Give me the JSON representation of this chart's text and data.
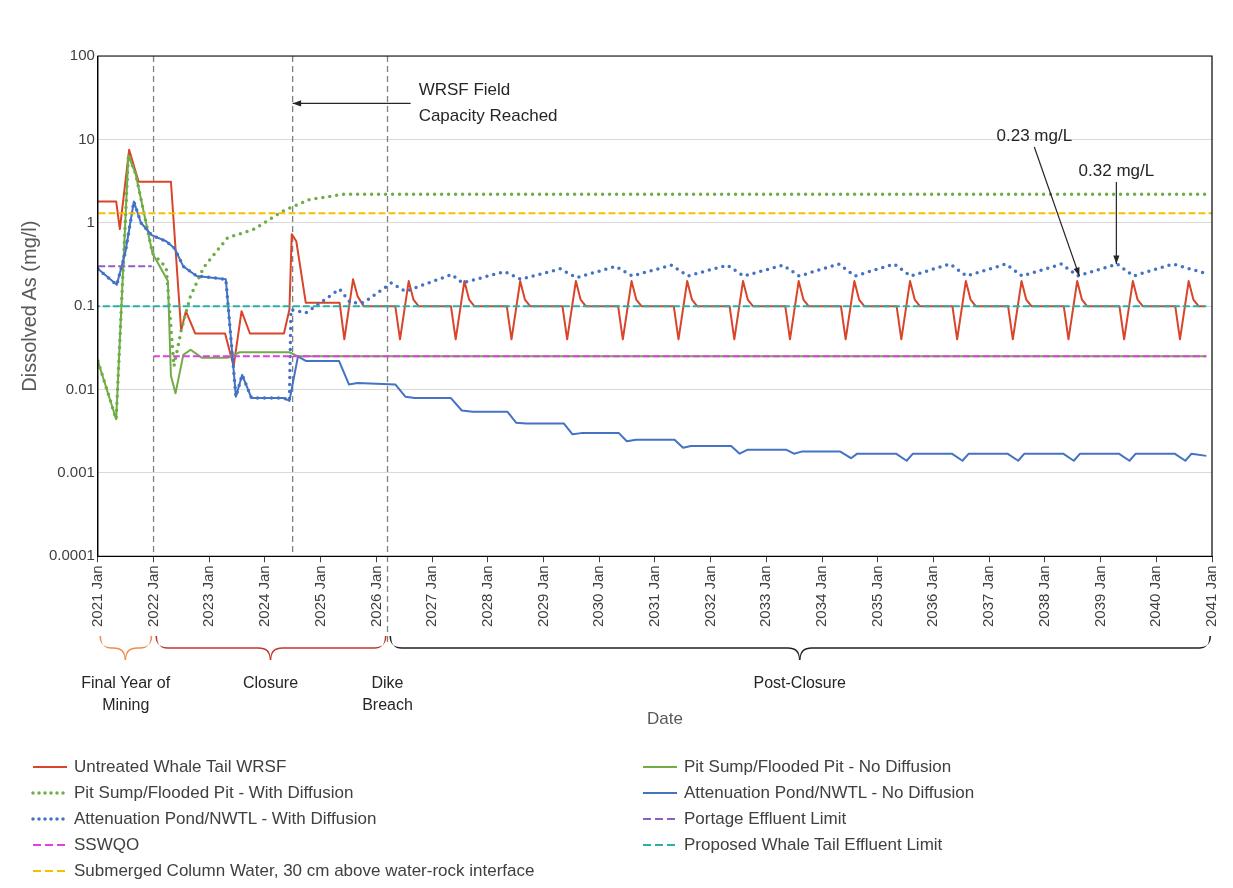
{
  "chart_data": {
    "type": "line",
    "xlabel": "Date",
    "ylabel": "Dissolved As (mg/l)",
    "log": "y",
    "grid": "y",
    "legend": "bottom",
    "marker": "none",
    "xlim": [
      "2021-01-01",
      "2041-01-01"
    ],
    "xticks": [
      {
        "value": "2021-01-01",
        "label": "2021 Jan"
      },
      {
        "value": "2022-01-01",
        "label": "2022 Jan"
      },
      {
        "value": "2023-01-01",
        "label": "2023 Jan"
      },
      {
        "value": "2024-01-01",
        "label": "2024 Jan"
      },
      {
        "value": "2025-01-01",
        "label": "2025 Jan"
      },
      {
        "value": "2026-01-01",
        "label": "2026 Jan"
      },
      {
        "value": "2027-01-01",
        "label": "2027 Jan"
      },
      {
        "value": "2028-01-01",
        "label": "2028 Jan"
      },
      {
        "value": "2029-01-01",
        "label": "2029 Jan"
      },
      {
        "value": "2030-01-01",
        "label": "2030 Jan"
      },
      {
        "value": "2031-01-01",
        "label": "2031 Jan"
      },
      {
        "value": "2032-01-01",
        "label": "2032 Jan"
      },
      {
        "value": "2033-01-01",
        "label": "2033 Jan"
      },
      {
        "value": "2034-01-01",
        "label": "2034 Jan"
      },
      {
        "value": "2035-01-01",
        "label": "2035 Jan"
      },
      {
        "value": "2036-01-01",
        "label": "2036 Jan"
      },
      {
        "value": "2037-01-01",
        "label": "2037 Jan"
      },
      {
        "value": "2038-01-01",
        "label": "2038 Jan"
      },
      {
        "value": "2039-01-01",
        "label": "2039 Jan"
      },
      {
        "value": "2040-01-01",
        "label": "2040 Jan"
      },
      {
        "value": "2041-01-01",
        "label": "2041 Jan"
      }
    ],
    "ylim": [
      0.0001,
      100
    ],
    "yticks": [
      0.0001,
      0.001,
      0.01,
      0.1,
      1,
      10,
      100
    ],
    "series": [
      {
        "name": "Untreated Whale Tail WRSF",
        "color": "#d9452b",
        "line_style": "solid",
        "x": [
          "2021-01-01",
          "2021-05-01",
          "2021-05-25",
          "2021-07-25",
          "2021-09-25",
          "2022-04-25",
          "2022-07-01",
          "2022-08-01",
          "2022-10-01",
          "2023-04-15",
          "2023-06-10",
          "2023-08-01",
          "2023-09-25",
          "2024-05-05",
          "2024-06-10",
          "2024-06-25",
          "2024-07-25",
          "2024-09-25",
          "2025-05-05",
          "2025-06-05",
          "2025-08-01",
          "2025-09-01",
          "2025-10-10",
          "2026-05-05",
          "2026-06-05",
          "2026-08-01",
          "2026-09-01",
          "2026-10-05",
          "2027-05-05",
          "2027-06-05",
          "2027-08-01",
          "2027-09-01",
          "2027-10-05",
          "2028-05-05",
          "2028-06-05",
          "2028-08-01",
          "2028-09-01",
          "2028-10-05",
          "2029-05-05",
          "2029-06-05",
          "2029-08-01",
          "2029-09-01",
          "2029-10-05",
          "2030-05-05",
          "2030-06-05",
          "2030-08-01",
          "2030-09-01",
          "2030-10-05",
          "2031-05-05",
          "2031-06-05",
          "2031-08-01",
          "2031-09-01",
          "2031-10-05",
          "2032-05-05",
          "2032-06-05",
          "2032-08-01",
          "2032-09-01",
          "2032-10-05",
          "2033-05-05",
          "2033-06-05",
          "2033-08-01",
          "2033-09-01",
          "2033-10-05",
          "2034-05-05",
          "2034-06-05",
          "2034-08-01",
          "2034-09-01",
          "2034-10-05",
          "2035-05-05",
          "2035-06-05",
          "2035-08-01",
          "2035-09-01",
          "2035-10-05",
          "2036-05-05",
          "2036-06-05",
          "2036-08-01",
          "2036-09-01",
          "2036-10-05",
          "2037-05-05",
          "2037-06-05",
          "2037-08-01",
          "2037-09-01",
          "2037-10-05",
          "2038-05-05",
          "2038-06-05",
          "2038-08-01",
          "2038-09-01",
          "2038-10-05",
          "2039-05-05",
          "2039-06-05",
          "2039-08-01",
          "2039-09-01",
          "2039-10-05",
          "2040-05-05",
          "2040-06-05",
          "2040-08-01",
          "2040-09-01",
          "2040-10-05",
          "2040-11-15"
        ],
        "values": [
          1.8,
          1.8,
          0.84,
          7.5,
          3.1,
          3.1,
          0.051,
          0.087,
          0.047,
          0.047,
          0.019,
          0.087,
          0.047,
          0.047,
          0.091,
          0.73,
          0.6,
          0.11,
          0.11,
          0.04,
          0.21,
          0.13,
          0.1,
          0.1,
          0.04,
          0.2,
          0.12,
          0.1,
          0.1,
          0.04,
          0.2,
          0.12,
          0.1,
          0.1,
          0.04,
          0.2,
          0.12,
          0.1,
          0.1,
          0.04,
          0.2,
          0.12,
          0.1,
          0.1,
          0.04,
          0.2,
          0.12,
          0.1,
          0.1,
          0.04,
          0.2,
          0.12,
          0.1,
          0.1,
          0.04,
          0.2,
          0.12,
          0.1,
          0.1,
          0.04,
          0.2,
          0.12,
          0.1,
          0.1,
          0.04,
          0.2,
          0.12,
          0.1,
          0.1,
          0.04,
          0.2,
          0.12,
          0.1,
          0.1,
          0.04,
          0.2,
          0.12,
          0.1,
          0.1,
          0.04,
          0.2,
          0.12,
          0.1,
          0.1,
          0.04,
          0.2,
          0.12,
          0.1,
          0.1,
          0.04,
          0.2,
          0.12,
          0.1,
          0.1,
          0.04,
          0.2,
          0.12,
          0.1,
          0.1
        ]
      },
      {
        "name": "Pit Sump/Flooded Pit - No Diffusion",
        "color": "#70ad47",
        "line_style": "solid",
        "x": [
          "2021-01-01",
          "2021-05-01",
          "2021-07-20",
          "2021-09-05",
          "2021-12-25",
          "2022-04-05",
          "2022-04-25",
          "2022-05-25",
          "2022-07-15",
          "2022-09-01",
          "2022-11-15",
          "2023-05-01",
          "2023-07-20",
          "2024-06-10",
          "2024-08-05",
          "2040-11-25"
        ],
        "values": [
          0.022,
          0.0044,
          6.4,
          3.9,
          0.43,
          0.2,
          0.0146,
          0.009,
          0.026,
          0.03,
          0.024,
          0.024,
          0.028,
          0.028,
          0.025,
          0.025
        ]
      },
      {
        "name": "Pit Sump/Flooded Pit - With Diffusion",
        "color": "#70ad47",
        "line_style": "dotted",
        "x": [
          "2021-01-01",
          "2021-05-01",
          "2021-07-20",
          "2021-09-05",
          "2021-12-25",
          "2022-03-25",
          "2022-05-15",
          "2022-07-01",
          "2022-08-30",
          "2022-11-25",
          "2023-05-01",
          "2023-10-25",
          "2024-04-20",
          "2024-10-20",
          "2025-06-01",
          "2040-11-15"
        ],
        "values": [
          0.022,
          0.0044,
          6.4,
          3.9,
          0.43,
          0.29,
          0.019,
          0.051,
          0.13,
          0.29,
          0.66,
          0.84,
          1.36,
          1.9,
          2.2,
          2.2
        ]
      },
      {
        "name": "Attenuation Pond/NWTL - No Diffusion",
        "color": "#4472c4",
        "line_style": "solid",
        "x": [
          "2021-01-01",
          "2021-05-05",
          "2021-07-01",
          "2021-08-25",
          "2021-10-10",
          "2021-12-20",
          "2022-03-25",
          "2022-05-20",
          "2022-07-15",
          "2022-10-10",
          "2023-04-20",
          "2023-06-25",
          "2023-08-05",
          "2023-10-05",
          "2024-05-05",
          "2024-06-10",
          "2024-08-05",
          "2024-09-25",
          "2025-05-01",
          "2025-07-05",
          "2025-08-30",
          "2026-05-05",
          "2026-07-10",
          "2026-09-10",
          "2027-05-05",
          "2027-07-15",
          "2027-09-25",
          "2028-05-10",
          "2028-07-05",
          "2028-09-10",
          "2029-05-15",
          "2029-07-10",
          "2029-09-05",
          "2030-05-10",
          "2030-07-01",
          "2030-08-30",
          "2031-05-10",
          "2031-07-05",
          "2031-08-25",
          "2032-05-15",
          "2032-07-10",
          "2032-09-01",
          "2033-05-10",
          "2033-07-01",
          "2033-08-20",
          "2034-05-01",
          "2034-07-10",
          "2034-08-20",
          "2035-05-01",
          "2035-07-10",
          "2035-08-20",
          "2036-05-01",
          "2036-07-10",
          "2036-08-20",
          "2037-05-01",
          "2037-07-10",
          "2037-08-20",
          "2038-05-01",
          "2038-07-10",
          "2038-08-20",
          "2039-05-01",
          "2039-07-10",
          "2039-08-20",
          "2040-05-01",
          "2040-07-10",
          "2040-08-20",
          "2040-11-25"
        ],
        "values": [
          0.28,
          0.18,
          0.45,
          1.8,
          1.0,
          0.71,
          0.6,
          0.49,
          0.3,
          0.23,
          0.21,
          0.0082,
          0.015,
          0.0079,
          0.0079,
          0.0073,
          0.025,
          0.022,
          0.022,
          0.0115,
          0.012,
          0.0115,
          0.0082,
          0.0079,
          0.0079,
          0.0056,
          0.0054,
          0.0054,
          0.004,
          0.0039,
          0.0039,
          0.0029,
          0.003,
          0.003,
          0.0024,
          0.0025,
          0.0025,
          0.002,
          0.0021,
          0.0021,
          0.0017,
          0.0019,
          0.0019,
          0.0017,
          0.0018,
          0.0018,
          0.0015,
          0.0017,
          0.0017,
          0.0014,
          0.0017,
          0.0017,
          0.0014,
          0.0017,
          0.0017,
          0.0014,
          0.0017,
          0.0017,
          0.0014,
          0.0017,
          0.0017,
          0.0014,
          0.0017,
          0.0017,
          0.0014,
          0.0017,
          0.0016
        ]
      },
      {
        "name": "Attenuation Pond/NWTL - With Diffusion",
        "color": "#4472c4",
        "line_style": "dotted",
        "x": [
          "2021-01-01",
          "2021-05-05",
          "2021-07-01",
          "2021-08-25",
          "2021-10-10",
          "2021-12-20",
          "2022-03-25",
          "2022-05-20",
          "2022-07-15",
          "2022-10-10",
          "2023-04-20",
          "2023-06-25",
          "2023-08-05",
          "2023-10-05",
          "2024-05-05",
          "2024-06-10",
          "2024-06-20",
          "2024-09-25",
          "2024-12-30",
          "2025-05-05",
          "2025-07-15",
          "2025-10-10",
          "2026-04-10",
          "2026-07-10",
          "2027-05-10",
          "2027-07-20",
          "2028-04-20",
          "2028-08-05",
          "2029-04-20",
          "2029-08-05",
          "2030-04-20",
          "2030-08-05",
          "2031-04-20",
          "2031-08-05",
          "2032-04-20",
          "2032-08-05",
          "2033-04-20",
          "2033-08-05",
          "2034-04-20",
          "2034-08-05",
          "2035-04-20",
          "2035-08-05",
          "2036-04-20",
          "2036-08-05",
          "2037-04-20",
          "2037-08-05",
          "2038-04-20",
          "2038-08-05",
          "2039-04-20",
          "2039-08-05",
          "2040-04-20",
          "2040-11-10"
        ],
        "values": [
          0.28,
          0.18,
          0.45,
          1.8,
          1.0,
          0.71,
          0.6,
          0.49,
          0.3,
          0.23,
          0.21,
          0.0082,
          0.015,
          0.0079,
          0.0079,
          0.0073,
          0.091,
          0.083,
          0.11,
          0.16,
          0.11,
          0.11,
          0.19,
          0.15,
          0.24,
          0.19,
          0.26,
          0.21,
          0.28,
          0.22,
          0.3,
          0.23,
          0.31,
          0.23,
          0.31,
          0.23,
          0.31,
          0.23,
          0.32,
          0.23,
          0.32,
          0.23,
          0.32,
          0.23,
          0.32,
          0.23,
          0.32,
          0.23,
          0.32,
          0.23,
          0.32,
          0.25
        ]
      },
      {
        "name": "Portage Effluent Limit",
        "color": "#8e5fc0",
        "line_style": "dashed",
        "x": [
          "2021-01-01",
          "2021-12-20"
        ],
        "values": [
          0.3,
          0.3
        ]
      },
      {
        "name": "SSWQO",
        "color": "#e040e0",
        "line_style": "dashed",
        "x": [
          "2022-01-01",
          "2040-11-25"
        ],
        "values": [
          0.025,
          0.025
        ]
      },
      {
        "name": "Proposed Whale Tail Effluent Limit",
        "color": "#2ab0a8",
        "line_style": "dashed",
        "x": [
          "2021-01-01",
          "2040-11-25"
        ],
        "values": [
          0.1,
          0.1
        ]
      },
      {
        "name": "Submerged Column Water, 30 cm above water-rock interface",
        "color": "#f5c000",
        "line_style": "dashed",
        "x": [
          "2021-01-01",
          "2041-01-01"
        ],
        "values": [
          1.3,
          1.3
        ]
      }
    ],
    "ref_lines": [
      {
        "axis": "x",
        "value": "2022-01-01",
        "color": "#808080",
        "line_style": "dashed"
      },
      {
        "axis": "x",
        "value": "2024-07-01",
        "color": "#808080",
        "line_style": "dashed"
      },
      {
        "axis": "x",
        "value": "2026-03-15",
        "color": "#808080",
        "line_style": "dashed",
        "label": "Dike Breach"
      }
    ],
    "annotations": [
      {
        "text": "WRSF Field Capacity Reached",
        "x": "2024-07-01",
        "y": 27
      },
      {
        "text": "0.23 mg/L",
        "x": "2038-08-15",
        "y": 0.23
      },
      {
        "text": "0.32 mg/L",
        "x": "2039-04-15",
        "y": 0.32
      },
      "Final Year of Mining",
      "Closure",
      "Post-Closure"
    ]
  }
}
